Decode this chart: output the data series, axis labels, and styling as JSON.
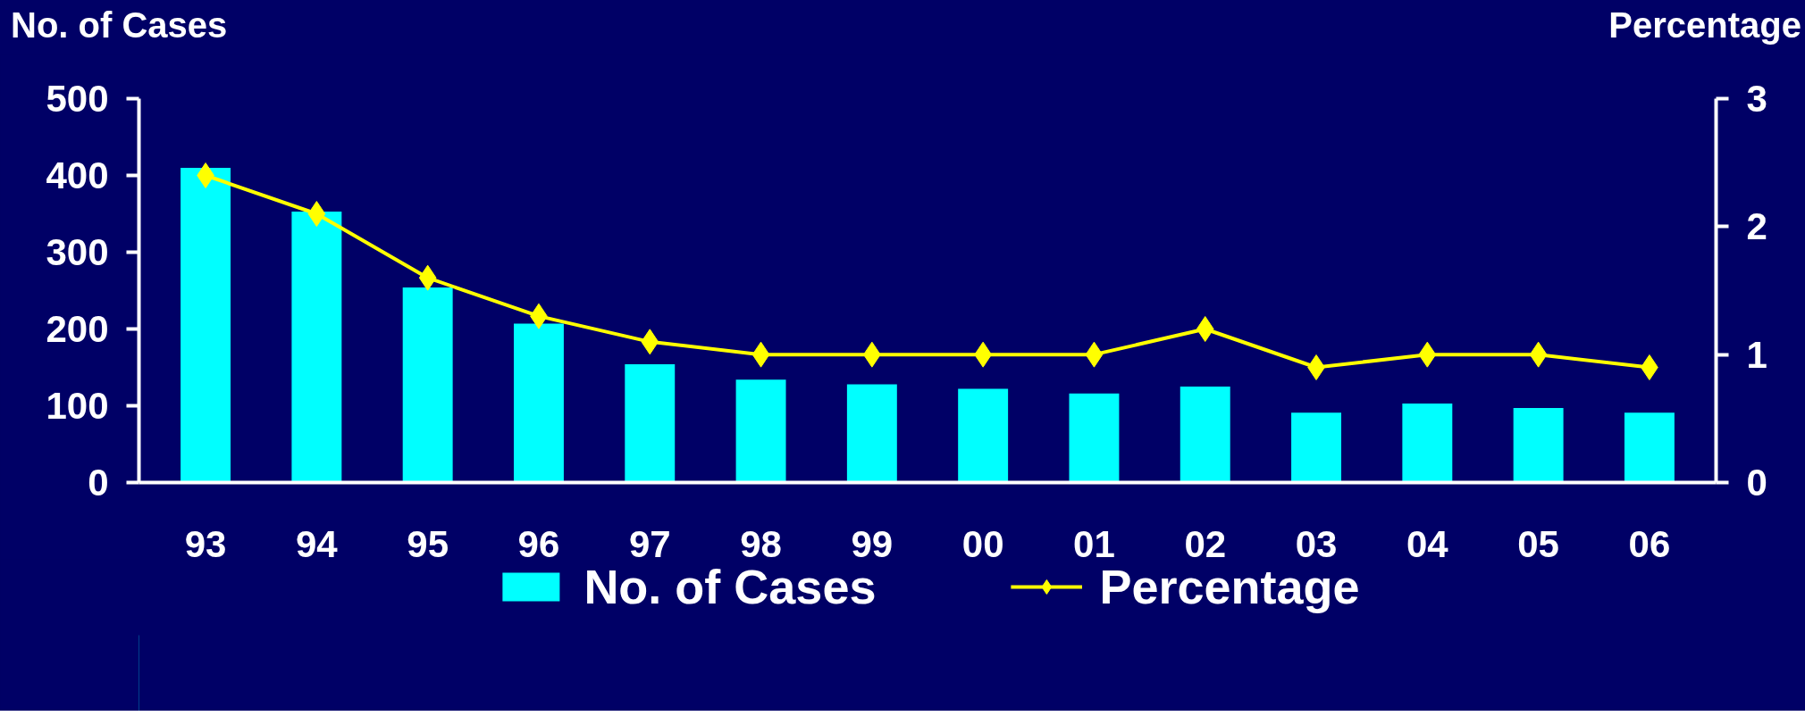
{
  "chart_data": {
    "type": "bar",
    "categories": [
      "93",
      "94",
      "95",
      "96",
      "97",
      "98",
      "99",
      "00",
      "01",
      "02",
      "03",
      "04",
      "05",
      "06"
    ],
    "series": [
      {
        "name": "No. of Cases",
        "type": "bar",
        "color": "#00ffff",
        "values": [
          410,
          353,
          254,
          207,
          154,
          134,
          128,
          122,
          116,
          125,
          91,
          103,
          97,
          91
        ]
      },
      {
        "name": "Percentage",
        "type": "line",
        "axis": "y2",
        "color": "#ffff00",
        "marker": "diamond",
        "values": [
          2.4,
          2.1,
          1.6,
          1.3,
          1.1,
          1.0,
          1.0,
          1.0,
          1.0,
          1.2,
          0.9,
          1.0,
          1.0,
          0.9
        ]
      }
    ],
    "ylabel": "No. of Cases",
    "y2label": "Percentage",
    "ylim": [
      0,
      500
    ],
    "yticks": [
      0,
      100,
      200,
      300,
      400,
      500
    ],
    "y2lim": [
      0,
      3
    ],
    "y2ticks": [
      0,
      1,
      2,
      3
    ],
    "grid": false,
    "legend": "bottom"
  }
}
